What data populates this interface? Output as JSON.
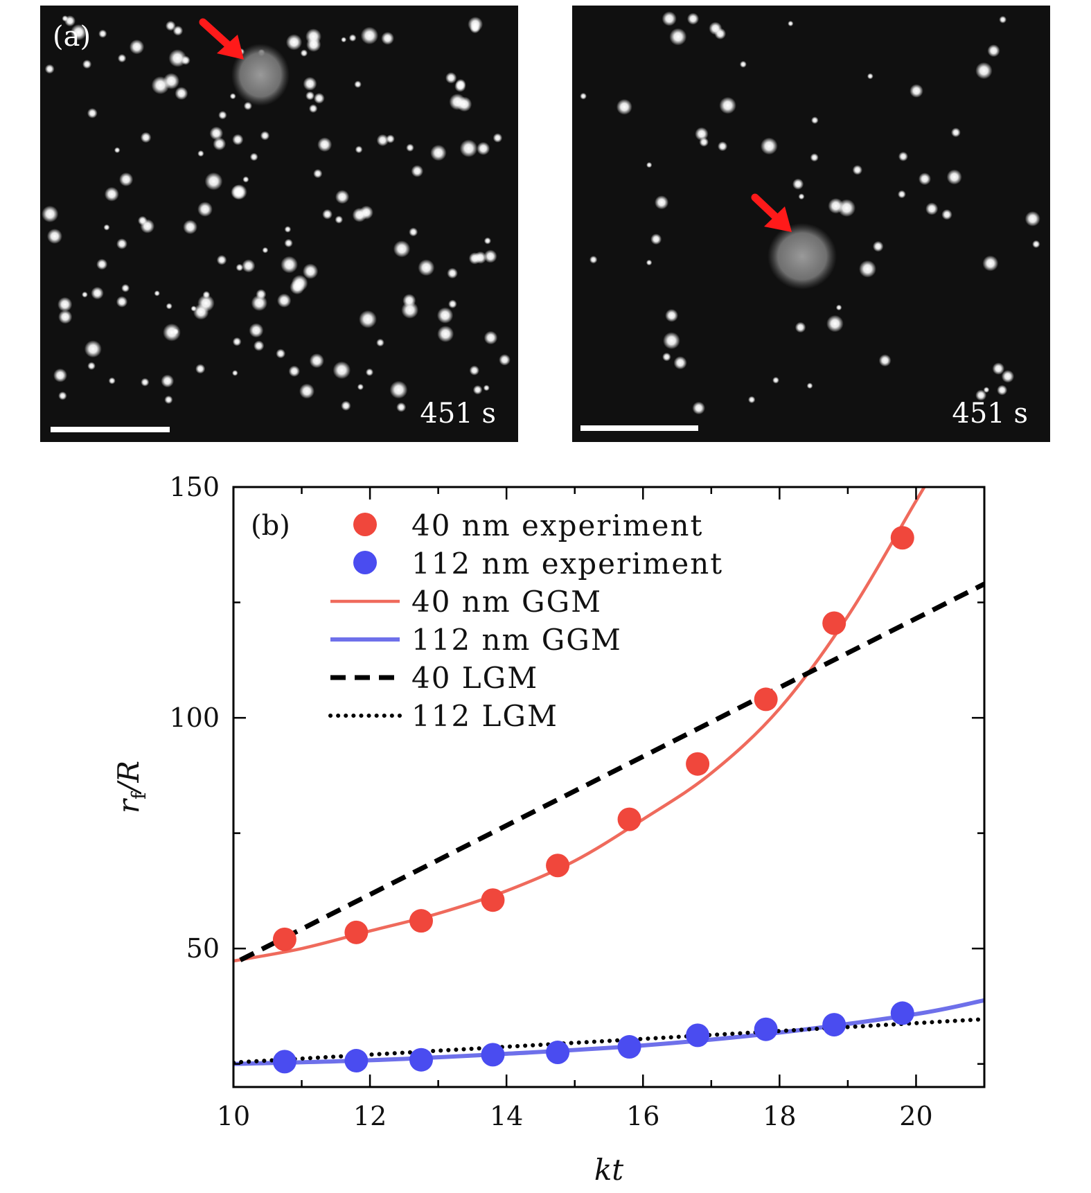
{
  "panel_a": {
    "label": "(a)",
    "time_left": "451 s",
    "time_right": "451 s"
  },
  "colors": {
    "experiment_40": "#f0473c",
    "experiment_112": "#4a4cf0",
    "ggm_40": "#ef6a5c",
    "ggm_112": "#6e70ea",
    "lgm": "#000000",
    "arrow": "#ff1a1a"
  },
  "chart_data": {
    "type": "scatter",
    "panel_label": "(b)",
    "xlabel": "kt",
    "ylabel": "r_f/R",
    "ylabel_main": "r",
    "ylabel_sub": "f",
    "ylabel_rest": "/R",
    "xlim": [
      10,
      21
    ],
    "ylim": [
      20,
      150
    ],
    "x_ticks": [
      10,
      12,
      14,
      16,
      18,
      20
    ],
    "y_ticks": [
      50,
      100,
      150
    ],
    "series": [
      {
        "name": "40 nm experiment",
        "style": "marker",
        "x": [
          10.75,
          11.8,
          12.75,
          13.8,
          14.75,
          15.8,
          16.8,
          17.8,
          18.8,
          19.8
        ],
        "y": [
          52,
          53.5,
          56,
          60.5,
          68,
          78,
          90,
          104,
          120.5,
          139
        ]
      },
      {
        "name": "112 nm experiment",
        "style": "marker",
        "x": [
          10.75,
          11.8,
          12.75,
          13.8,
          14.75,
          15.8,
          16.8,
          17.8,
          18.8,
          19.8
        ],
        "y": [
          25.5,
          25.7,
          25.9,
          27,
          27.5,
          28.7,
          31.2,
          32.5,
          33.5,
          36
        ]
      },
      {
        "name": "40 nm GGM",
        "style": "solid",
        "x": [
          10,
          11,
          12,
          13,
          14,
          15,
          16,
          17,
          18,
          19,
          20,
          20.2
        ],
        "y": [
          47.3,
          50,
          53.8,
          57.6,
          62.5,
          69,
          78,
          88,
          102,
          122,
          147,
          152
        ]
      },
      {
        "name": "112 nm GGM",
        "style": "solid",
        "x": [
          10,
          12,
          14,
          16,
          18,
          20,
          21
        ],
        "y": [
          25,
          25.8,
          27.2,
          29,
          31.8,
          35.8,
          38.8
        ]
      },
      {
        "name": "40 LGM",
        "style": "dashed",
        "x": [
          10.1,
          21
        ],
        "y": [
          47.5,
          129
        ]
      },
      {
        "name": "112 LGM",
        "style": "dotted",
        "x": [
          10,
          21
        ],
        "y": [
          25.3,
          34.7
        ]
      }
    ]
  }
}
